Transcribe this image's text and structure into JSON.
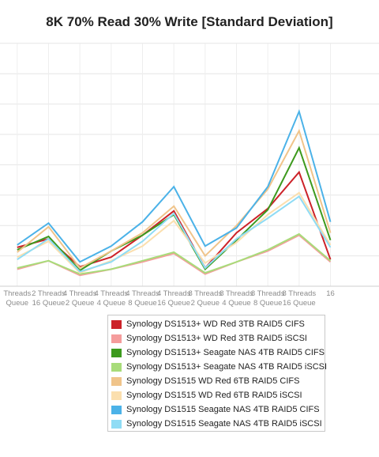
{
  "chart_data": {
    "type": "line",
    "title": "8K 70% Read 30% Write [Standard Deviation]",
    "xlabel": "",
    "ylabel": "",
    "grid": true,
    "legend_position": "bottom",
    "x_visible_range": [
      -0.55,
      11.55
    ],
    "ylim": [
      0,
      10
    ],
    "categories": [
      [
        "Threads",
        "Queue"
      ],
      [
        "2 Threads",
        "16 Queue"
      ],
      [
        "4 Threads",
        "2 Queue"
      ],
      [
        "4 Threads",
        "4 Queue"
      ],
      [
        "4 Threads",
        "8 Queue"
      ],
      [
        "4 Threads",
        "16 Queue"
      ],
      [
        "8 Threads",
        "2 Queue"
      ],
      [
        "8 Threads",
        "4 Queue"
      ],
      [
        "8 Threads",
        "8 Queue"
      ],
      [
        "8 Threads",
        "16 Queue"
      ],
      [
        "16",
        ""
      ]
    ],
    "series": [
      {
        "name": "Synology DS1513+ WD Red 3TB RAID5 CIFS",
        "color": "#cc2229",
        "values": [
          1.6,
          1.95,
          0.8,
          1.2,
          2.1,
          3.1,
          0.75,
          2.2,
          3.2,
          4.7,
          1.1
        ]
      },
      {
        "name": "Synology DS1513+ WD Red 3TB RAID5 iSCSI",
        "color": "#f59c9c",
        "values": [
          0.7,
          1.05,
          0.45,
          0.7,
          1.0,
          1.35,
          0.5,
          1.0,
          1.45,
          2.1,
          1.0
        ]
      },
      {
        "name": "Synology DS1513+ Seagate NAS 4TB RAID5 CIFS",
        "color": "#3d9a1e",
        "values": [
          1.5,
          2.05,
          0.65,
          1.45,
          2.1,
          2.95,
          0.7,
          1.9,
          3.15,
          5.7,
          1.9
        ]
      },
      {
        "name": "Synology DS1513+ Seagate NAS 4TB RAID5 iSCSI",
        "color": "#a8dc7a",
        "values": [
          0.75,
          1.05,
          0.5,
          0.7,
          1.05,
          1.4,
          0.55,
          1.0,
          1.5,
          2.15,
          1.05
        ]
      },
      {
        "name": "Synology DS1515 WD Red 6TB RAID5 CIFS",
        "color": "#f0c48a",
        "values": [
          1.4,
          2.45,
          0.75,
          1.45,
          2.2,
          3.3,
          1.25,
          2.5,
          4.0,
          6.4,
          2.2
        ]
      },
      {
        "name": "Synology DS1515 WD Red 6TB RAID5 iSCSI",
        "color": "#fbdfae",
        "values": [
          1.2,
          1.85,
          0.55,
          1.05,
          1.65,
          2.7,
          0.95,
          1.8,
          2.95,
          3.85,
          1.7
        ]
      },
      {
        "name": "Synology DS1515 Seagate NAS 4TB RAID5 CIFS",
        "color": "#4bb2e8",
        "values": [
          1.7,
          2.6,
          1.0,
          1.65,
          2.65,
          4.1,
          1.65,
          2.4,
          4.1,
          7.2,
          2.65
        ]
      },
      {
        "name": "Synology DS1515 Seagate NAS 4TB RAID5 iSCSI",
        "color": "#8fdcf5",
        "values": [
          1.1,
          1.95,
          0.6,
          1.0,
          1.85,
          3.0,
          0.75,
          1.95,
          2.8,
          3.7,
          1.6
        ]
      }
    ]
  }
}
